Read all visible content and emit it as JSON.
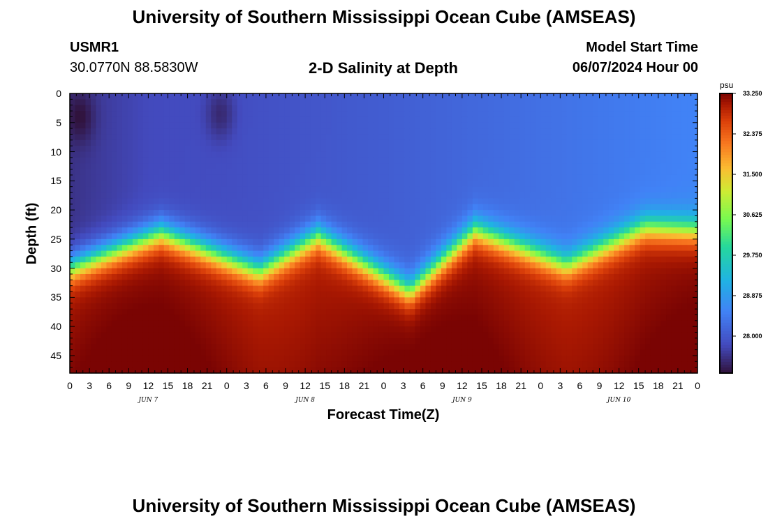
{
  "header": {
    "title_top": "University of Southern Mississippi Ocean Cube (AMSEAS)",
    "title_bottom": "University of Southern Mississippi Ocean Cube (AMSEAS)",
    "station_id": "USMR1",
    "coordinates": "30.0770N  88.5830W",
    "product_title": "2-D Salinity at Depth",
    "model_start_label": "Model Start Time",
    "model_start_value": "06/07/2024 Hour 00"
  },
  "chart_data": {
    "type": "heatmap",
    "title": "2-D Salinity at Depth",
    "xlabel": "Forecast Time(Z)",
    "ylabel": "Depth (ft)",
    "x_range_hours": [
      0,
      96
    ],
    "ylim": [
      0,
      48
    ],
    "y_inverted": true,
    "x_tick_labels": [
      "0",
      "3",
      "6",
      "9",
      "12",
      "15",
      "18",
      "21",
      "0",
      "3",
      "6",
      "9",
      "12",
      "15",
      "18",
      "21",
      "0",
      "3",
      "6",
      "9",
      "12",
      "15",
      "18",
      "21",
      "0",
      "3",
      "6",
      "9",
      "12",
      "15",
      "18",
      "21",
      "0"
    ],
    "y_tick_labels": [
      "0",
      "5",
      "10",
      "15",
      "20",
      "25",
      "30",
      "35",
      "40",
      "45"
    ],
    "day_labels": [
      {
        "label": "JUN 7",
        "hour": 12
      },
      {
        "label": "JUN 8",
        "hour": 36
      },
      {
        "label": "JUN 9",
        "hour": 60
      },
      {
        "label": "JUN 10",
        "hour": 84
      }
    ],
    "colorbar": {
      "units": "psu",
      "min": 27.2,
      "max": 33.25,
      "tick_labels": [
        "33.250",
        "32.375",
        "31.500",
        "30.625",
        "29.750",
        "28.875",
        "28.000"
      ]
    },
    "halocline_depth_ft": [
      {
        "hour": 0,
        "depth": 30
      },
      {
        "hour": 14,
        "depth": 24
      },
      {
        "hour": 29,
        "depth": 30.5
      },
      {
        "hour": 38,
        "depth": 24.5
      },
      {
        "hour": 52,
        "depth": 34
      },
      {
        "hour": 62,
        "depth": 23.5
      },
      {
        "hour": 76,
        "depth": 29.5
      },
      {
        "hour": 88,
        "depth": 23
      },
      {
        "hour": 96,
        "depth": 23.5
      }
    ],
    "surface_salinity_psu": [
      {
        "hour": 0,
        "value": 27.55
      },
      {
        "hour": 12,
        "value": 27.8
      },
      {
        "hour": 24,
        "value": 27.85
      },
      {
        "hour": 48,
        "value": 28.05
      },
      {
        "hour": 72,
        "value": 28.3
      },
      {
        "hour": 96,
        "value": 28.55
      }
    ],
    "bottom_salinity_psu": 33.0,
    "fresh_patches": [
      {
        "hour": 1.5,
        "depth": 4,
        "value": 27.2
      },
      {
        "hour": 23,
        "depth": 3.5,
        "value": 27.45
      }
    ]
  }
}
